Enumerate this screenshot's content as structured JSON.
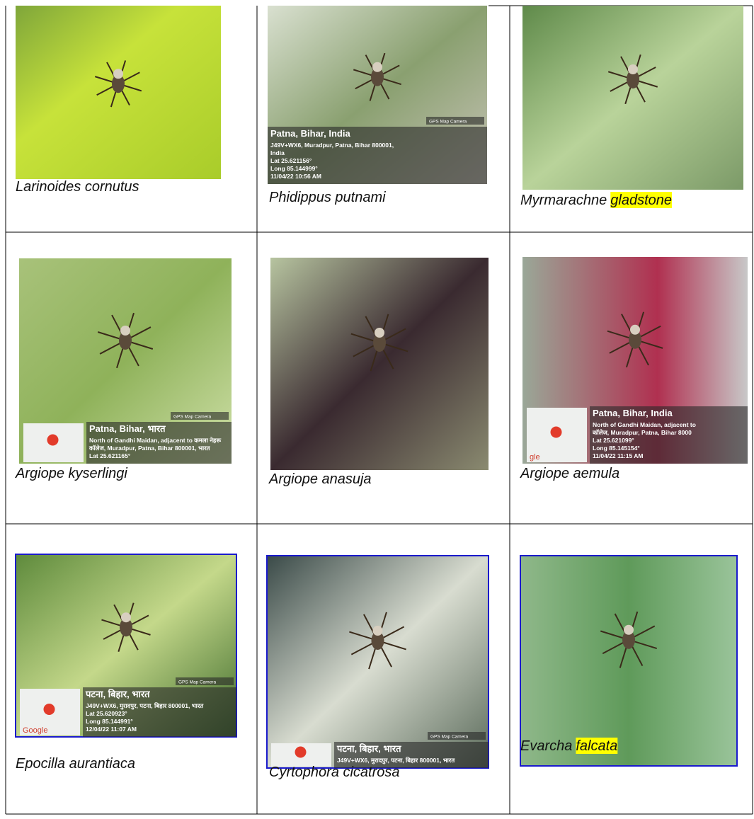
{
  "table": {
    "rows": [
      [
        {
          "genus": "Larinoides cornutus",
          "species": null,
          "highlight": false,
          "overlay": []
        },
        {
          "genus": "Phidippus putnami",
          "species": null,
          "highlight": false,
          "overlay": [
            "Patna, Bihar, India",
            "J49V+WX6, Muradpur, Patna, Bihar 800001,",
            "India",
            "Lat 25.621156°",
            "Long 85.144999°",
            "11/04/22 10:56 AM"
          ],
          "badge": "GPS Map Camera"
        },
        {
          "genus": "Myrmarachne",
          "species": "gladstone",
          "highlight": true,
          "overlay": []
        }
      ],
      [
        {
          "genus": "Argiope kyserlingi",
          "species": null,
          "highlight": false,
          "overlay": [
            "Patna, Bihar, भारत",
            "North of Gandhi Maidan, adjacent to कमला नेहरू",
            "कॉलेज, Muradpur, Patna, Bihar 800001, भारत",
            "Lat 25.621165°"
          ],
          "badge": "GPS Map Camera"
        },
        {
          "genus": "Argiope anasuja",
          "species": null,
          "highlight": false,
          "overlay": []
        },
        {
          "genus": "Argiope aemula",
          "species": null,
          "highlight": false,
          "overlay": [
            "Patna, Bihar, India",
            "North of Gandhi Maidan, adjacent to",
            "कॉलेज, Muradpur, Patna, Bihar 8000",
            "Lat 25.621099°",
            "Long 85.145154°",
            "11/04/22 11:15 AM"
          ],
          "map_text": "gle"
        }
      ],
      [
        {
          "genus": "Epocilla aurantiaca",
          "species": null,
          "highlight": false,
          "overlay": [
            "पटना, बिहार, भारत",
            "J49V+WX6, मुरादपुर, पटना, बिहार 800001, भारत",
            "Lat 25.620923°",
            "Long 85.144991°",
            "12/04/22 11:07 AM"
          ],
          "badge": "GPS Map Camera",
          "map_text": "Google"
        },
        {
          "genus": "Cyrtophora cicatrosa",
          "species": null,
          "highlight": false,
          "overlay": [
            "पटना, बिहार, भारत",
            "J49V+WX6, मुरादपुर, पटना, बिहार 800001, भारत"
          ],
          "badge": "GPS Map Camera"
        },
        {
          "genus": "Evarcha",
          "species": "falcata",
          "highlight": true,
          "overlay": []
        }
      ]
    ]
  }
}
